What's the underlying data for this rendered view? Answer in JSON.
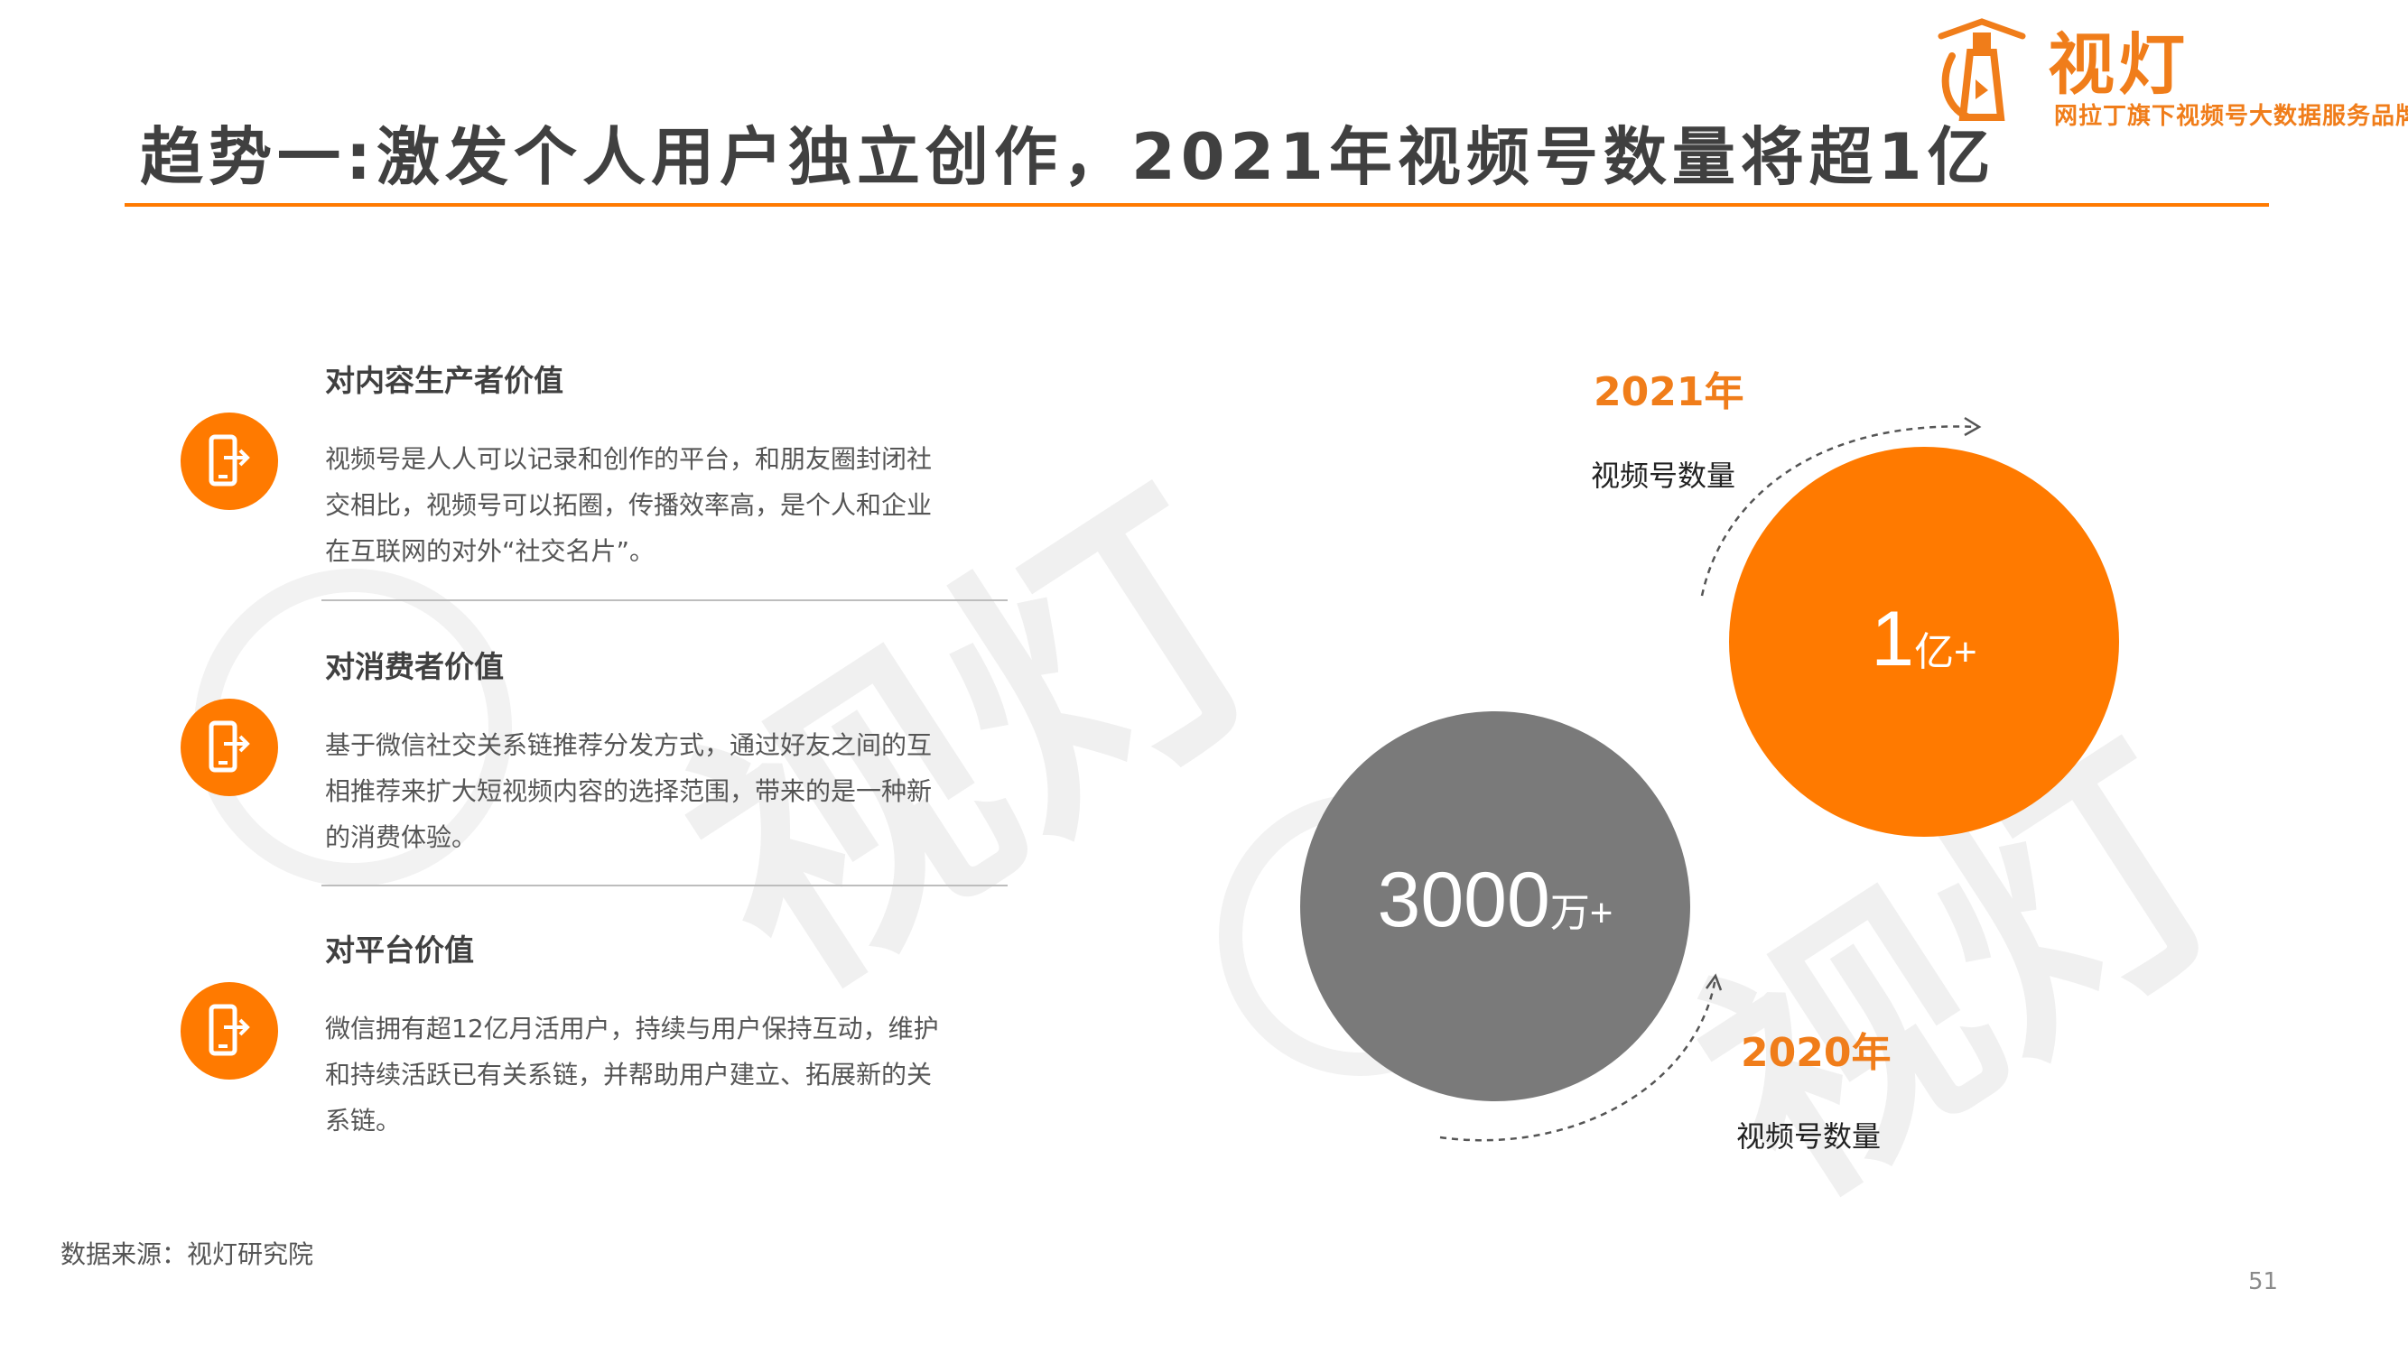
{
  "header": {
    "title": "趋势一:激发个人用户独立创作，2021年视频号数量将超1亿",
    "brand_name": "视灯",
    "brand_slogan": "网拉丁旗下视频号大数据服务品牌"
  },
  "sections": [
    {
      "heading": "对内容生产者价值",
      "lines": [
        "视频号是人人可以记录和创作的平台，和朋友圈封闭社",
        "交相比，视频号可以拓圈，传播效率高，是个人和企业",
        "在互联网的对外“社交名片”。"
      ],
      "icon": "mobile-share-icon"
    },
    {
      "heading": "对消费者价值",
      "lines": [
        "基于微信社交关系链推荐分发方式，通过好友之间的互",
        "相推荐来扩大短视频内容的选择范围，带来的是一种新",
        "的消费体验。"
      ],
      "icon": "mobile-share-icon"
    },
    {
      "heading": "对平台价值",
      "lines": [
        "微信拥有超12亿月活用户，持续与用户保持互动，维护",
        "和持续活跃已有关系链，并帮助用户建立、拓展新的关",
        "系链。"
      ],
      "icon": "mobile-share-icon"
    }
  ],
  "comparison": {
    "y2021": {
      "year": "2021年",
      "metric": "视频号数量",
      "number": "1",
      "unit": "亿+"
    },
    "y2020": {
      "year": "2020年",
      "metric": "视频号数量",
      "number": "3000",
      "unit": "万+"
    }
  },
  "watermark": "视灯",
  "footer": {
    "source": "数据来源：视灯研究院",
    "page_number": "51"
  },
  "colors": {
    "accent": "#ff7a00",
    "gray_circle": "#7a7a7a",
    "text": "#404040"
  }
}
